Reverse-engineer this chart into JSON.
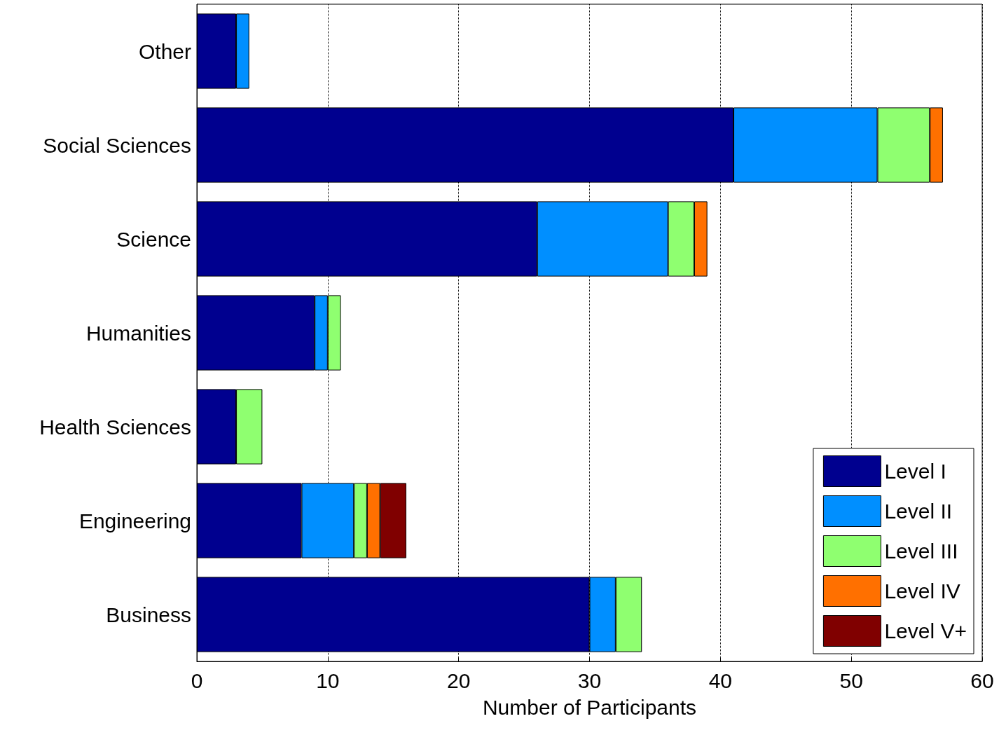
{
  "chart_data": {
    "type": "bar",
    "orientation": "horizontal",
    "stacked": true,
    "xlabel": "Number of Participants",
    "categories": [
      "Other",
      "Social Sciences",
      "Science",
      "Humanities",
      "Health Sciences",
      "Engineering",
      "Business"
    ],
    "series": [
      {
        "name": "Level I",
        "color": "#00008f",
        "values": [
          3,
          41,
          26,
          9,
          3,
          8,
          30
        ]
      },
      {
        "name": "Level II",
        "color": "#008fff",
        "values": [
          1,
          11,
          10,
          1,
          null,
          4,
          2
        ]
      },
      {
        "name": "Level III",
        "color": "#8fff70",
        "values": [
          null,
          4,
          2,
          1,
          2,
          1,
          2
        ]
      },
      {
        "name": "Level IV",
        "color": "#ff7000",
        "values": [
          null,
          1,
          1,
          null,
          null,
          1,
          null
        ]
      },
      {
        "name": "Level V+",
        "color": "#800000",
        "values": [
          null,
          null,
          null,
          null,
          null,
          2,
          null
        ]
      }
    ],
    "xlim": [
      0,
      60
    ],
    "xticks": [
      0,
      10,
      20,
      30,
      40,
      50,
      60
    ],
    "grid": "x",
    "legend": "bottom right"
  }
}
